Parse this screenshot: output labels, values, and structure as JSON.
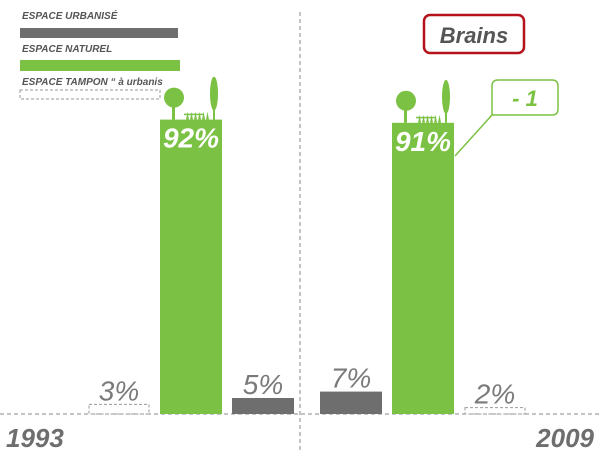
{
  "colors": {
    "urban": "#6e6e6e",
    "natural": "#7bc143",
    "buffer_stroke": "#9a9a9a",
    "text_grey": "#6e6e6e",
    "callout_red": "#b5121b",
    "callout_green": "#7bc143",
    "divider": "#888888"
  },
  "legend": [
    {
      "label": "ESPACE URBANISÉ",
      "series": "urban"
    },
    {
      "label": "ESPACE NATUREL",
      "series": "natural"
    },
    {
      "label": "ESPACE TAMPON “ à urbanis",
      "series": "buffer"
    }
  ],
  "chart_data": {
    "type": "bar",
    "title": "",
    "xlabel": "",
    "ylabel": "",
    "ylim": [
      0,
      100
    ],
    "grid": false,
    "legend_position": "top-left",
    "groups": [
      {
        "year": "1993",
        "bars": [
          {
            "series": "buffer",
            "value": 3,
            "label": "3%"
          },
          {
            "series": "natural",
            "value": 92,
            "label": "92%"
          },
          {
            "series": "urban",
            "value": 5,
            "label": "5%"
          }
        ]
      },
      {
        "year": "2009",
        "bars": [
          {
            "series": "urban",
            "value": 7,
            "label": "7%"
          },
          {
            "series": "natural",
            "value": 91,
            "label": "91%"
          },
          {
            "series": "buffer",
            "value": 2,
            "label": "2%"
          }
        ]
      }
    ],
    "annotations": [
      {
        "text": "Brains",
        "style": "red-box"
      },
      {
        "text": "- 1",
        "style": "green-callout"
      }
    ]
  }
}
